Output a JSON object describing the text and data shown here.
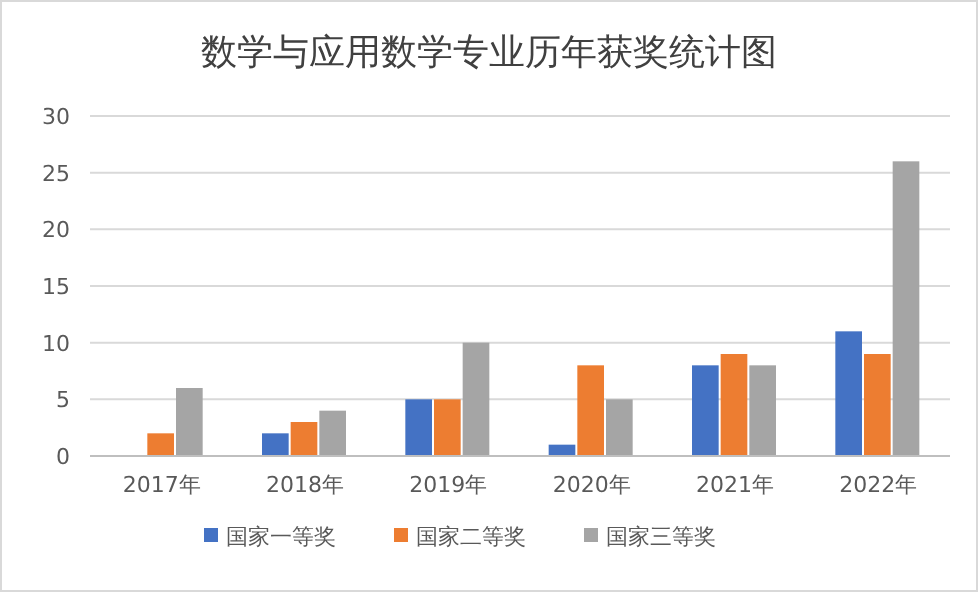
{
  "chart_data": {
    "type": "bar",
    "title": "数学与应用数学专业历年获奖统计图",
    "categories": [
      "2017年",
      "2018年",
      "2019年",
      "2020年",
      "2021年",
      "2022年"
    ],
    "series": [
      {
        "name": "国家一等奖",
        "color": "#4472c4",
        "values": [
          0,
          2,
          5,
          1,
          8,
          11
        ]
      },
      {
        "name": "国家二等奖",
        "color": "#ed7d31",
        "values": [
          2,
          3,
          5,
          8,
          9,
          9
        ]
      },
      {
        "name": "国家三等奖",
        "color": "#a5a5a5",
        "values": [
          6,
          4,
          10,
          5,
          8,
          26
        ]
      }
    ],
    "ylim": [
      0,
      30
    ],
    "yticks": [
      0,
      5,
      10,
      15,
      20,
      25,
      30
    ],
    "grid": "y",
    "legend": "bottom"
  }
}
